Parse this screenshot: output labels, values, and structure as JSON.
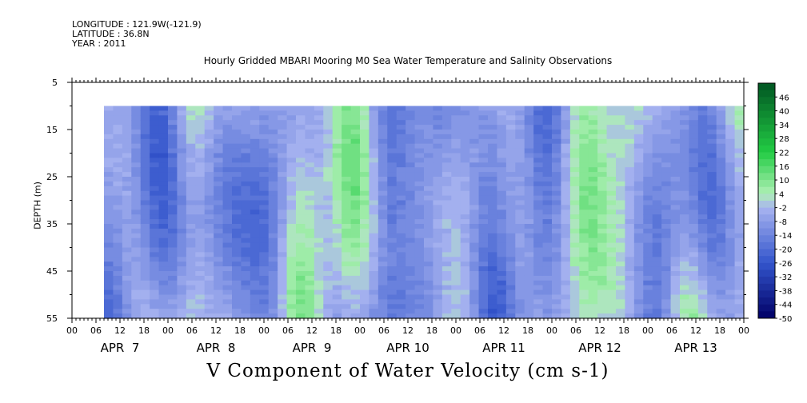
{
  "header": {
    "longitude": "LONGITUDE : 121.9W(-121.9)",
    "latitude": "LATITUDE : 36.8N",
    "year": "YEAR : 2011"
  },
  "chart_data": {
    "type": "heatmap",
    "title": "Hourly Gridded MBARI Mooring M0 Sea Water Temperature and Salinity Observations",
    "xlabel": "V Component of Water Velocity (cm s-1)",
    "ylabel": "DEPTH (m)",
    "y_ticks": [
      5,
      15,
      25,
      35,
      45,
      55
    ],
    "ylim": [
      55,
      5
    ],
    "x_hour_ticks": [
      "00",
      "06",
      "12",
      "18",
      "00",
      "06",
      "12",
      "18",
      "00",
      "06",
      "12",
      "18",
      "00",
      "06",
      "12",
      "18",
      "00",
      "06",
      "12",
      "18",
      "00",
      "06",
      "12",
      "18",
      "00",
      "06",
      "12",
      "18",
      "00"
    ],
    "x_day_labels": [
      "APR  7",
      "APR  8",
      "APR  9",
      "APR 10",
      "APR 11",
      "APR 12",
      "APR 13"
    ],
    "colorbar_labels": [
      "46",
      "40",
      "34",
      "28",
      "22",
      "16",
      "10",
      "4",
      "-2",
      "-8",
      "-14",
      "-20",
      "-26",
      "-32",
      "-38",
      "-44",
      "-50"
    ],
    "colorbar_range": [
      -50,
      52
    ],
    "colorbar_step": 3,
    "data_start_hour": 8,
    "data_depth_range": [
      10,
      55
    ],
    "x_cells": 70,
    "y_cells": 45,
    "seed": 20110407,
    "colors": {
      "strong_negative": "#000066",
      "negative": "#3355cc",
      "weak_negative": "#a8b4f0",
      "weak_positive": "#aef0b4",
      "positive": "#22cc44",
      "strong_positive": "#005522"
    }
  }
}
